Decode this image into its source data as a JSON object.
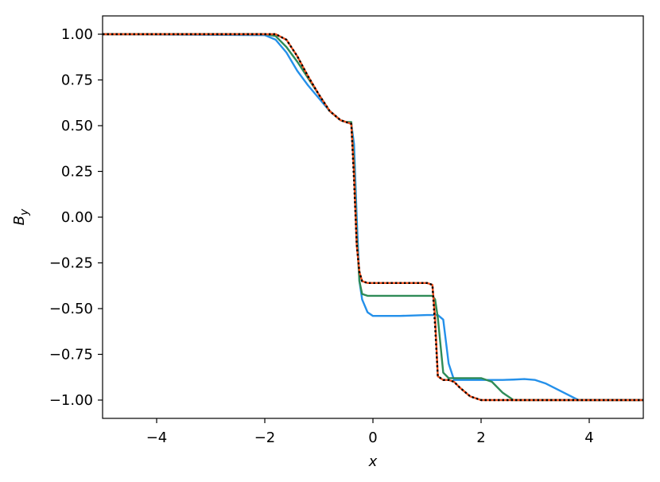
{
  "chart_data": {
    "type": "line",
    "x": [
      -5,
      -2,
      -1.8,
      -1.6,
      -1.4,
      -1.2,
      -1,
      -0.8,
      -0.6,
      -0.5,
      -0.4,
      -0.35,
      -0.3,
      -0.25,
      -0.2,
      -0.1,
      0,
      0.5,
      1,
      1.1,
      1.15,
      1.2,
      1.3,
      1.4,
      1.5,
      1.6,
      1.8,
      2,
      2.2,
      2.4,
      2.6,
      2.8,
      3,
      3.2,
      3.4,
      3.6,
      3.8,
      4,
      5
    ],
    "series": [
      {
        "color": "#2490ea",
        "linestyle": "solid",
        "values": [
          1,
          0.995,
          0.97,
          0.9,
          0.8,
          0.72,
          0.65,
          0.58,
          0.53,
          0.52,
          0.51,
          0.4,
          0,
          -0.35,
          -0.45,
          -0.52,
          -0.54,
          -0.54,
          -0.535,
          -0.535,
          -0.535,
          -0.535,
          -0.56,
          -0.8,
          -0.89,
          -0.89,
          -0.89,
          -0.89,
          -0.89,
          -0.89,
          -0.888,
          -0.885,
          -0.89,
          -0.91,
          -0.94,
          -0.97,
          -1,
          -1,
          -1
        ]
      },
      {
        "color": "#2e8b57",
        "linestyle": "solid",
        "values": [
          1,
          1,
          0.99,
          0.93,
          0.85,
          0.76,
          0.67,
          0.58,
          0.53,
          0.52,
          0.52,
          0.3,
          -0.1,
          -0.35,
          -0.42,
          -0.43,
          -0.43,
          -0.43,
          -0.43,
          -0.43,
          -0.45,
          -0.55,
          -0.85,
          -0.88,
          -0.88,
          -0.88,
          -0.88,
          -0.88,
          -0.9,
          -0.96,
          -1,
          -1,
          -1,
          -1,
          -1,
          -1,
          -1,
          -1,
          -1
        ]
      },
      {
        "color": "#f4511e",
        "linestyle": "solid",
        "values": [
          1,
          1,
          1,
          0.97,
          0.88,
          0.77,
          0.67,
          0.58,
          0.53,
          0.52,
          0.51,
          0.25,
          -0.15,
          -0.3,
          -0.35,
          -0.36,
          -0.36,
          -0.36,
          -0.36,
          -0.37,
          -0.55,
          -0.87,
          -0.89,
          -0.89,
          -0.9,
          -0.93,
          -0.98,
          -1,
          -1,
          -1,
          -1,
          -1,
          -1,
          -1,
          -1,
          -1,
          -1,
          -1,
          -1
        ]
      },
      {
        "color": "#000000",
        "linestyle": "dotted",
        "values": [
          1,
          1,
          1,
          0.97,
          0.88,
          0.77,
          0.67,
          0.58,
          0.53,
          0.52,
          0.51,
          0.2,
          -0.15,
          -0.3,
          -0.35,
          -0.36,
          -0.36,
          -0.36,
          -0.36,
          -0.37,
          -0.6,
          -0.87,
          -0.89,
          -0.89,
          -0.9,
          -0.93,
          -0.98,
          -1,
          -1,
          -1,
          -1,
          -1,
          -1,
          -1,
          -1,
          -1,
          -1,
          -1,
          -1
        ]
      }
    ],
    "xlabel": "x",
    "ylabel": {
      "main": "B",
      "sub": "y"
    },
    "xlim": [
      -5,
      5
    ],
    "ylim": [
      -1.1,
      1.1
    ],
    "xticks": [
      {
        "value": -4,
        "label": "−4"
      },
      {
        "value": -2,
        "label": "−2"
      },
      0,
      2,
      4
    ],
    "yticks": [
      {
        "value": 1,
        "label": "1.00"
      },
      {
        "value": 0.75,
        "label": "0.75"
      },
      {
        "value": 0.5,
        "label": "0.50"
      },
      {
        "value": 0.25,
        "label": "0.25"
      },
      {
        "value": 0,
        "label": "0.00"
      },
      {
        "value": -0.25,
        "label": "−0.25"
      },
      {
        "value": -0.5,
        "label": "−0.50"
      },
      {
        "value": -0.75,
        "label": "−0.75"
      },
      {
        "value": -1,
        "label": "−1.00"
      }
    ],
    "grid": false
  }
}
